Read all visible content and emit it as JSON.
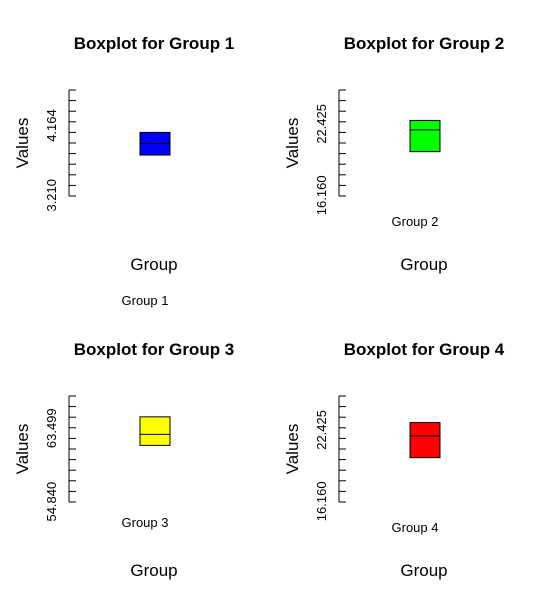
{
  "chart_data": [
    {
      "type": "box",
      "title": "Boxplot for Group 1",
      "xlabel": "Group",
      "ylabel": "Values",
      "group_label": "Group 1",
      "box_color": "#0000ff",
      "y_ticks": [
        3.21,
        4.164
      ],
      "y_tick_labels": [
        "3.210",
        "4.164"
      ],
      "ylim": [
        3.2,
        4.65
      ],
      "box": {
        "q1": 3.76,
        "median": 3.92,
        "q3": 4.07
      }
    },
    {
      "type": "box",
      "title": "Boxplot for Group 2",
      "xlabel": "Group",
      "ylabel": "Values",
      "group_label": "Group 2",
      "box_color": "#00ff00",
      "y_ticks": [
        16.16,
        22.425
      ],
      "y_tick_labels": [
        "16.160",
        "22.425"
      ],
      "ylim": [
        16.1,
        25.4
      ],
      "box": {
        "q1": 19.99,
        "median": 21.9,
        "q3": 22.73
      }
    },
    {
      "type": "box",
      "title": "Boxplot for Group 3",
      "xlabel": "Group",
      "ylabel": "Values",
      "group_label": "Group 3",
      "box_color": "#ffff00",
      "y_ticks": [
        54.84,
        63.499
      ],
      "y_tick_labels": [
        "54.840",
        "63.499"
      ],
      "ylim": [
        54.8,
        67.3
      ],
      "box": {
        "q1": 61.48,
        "median": 62.77,
        "q3": 64.84
      }
    },
    {
      "type": "box",
      "title": "Boxplot for Group 4",
      "xlabel": "Group",
      "ylabel": "Values",
      "group_label": "Group 4",
      "box_color": "#ff0000",
      "y_ticks": [
        16.16,
        22.425
      ],
      "y_tick_labels": [
        "16.160",
        "22.425"
      ],
      "ylim": [
        16.1,
        25.4
      ],
      "box": {
        "q1": 19.99,
        "median": 21.9,
        "q3": 23.07
      }
    }
  ]
}
